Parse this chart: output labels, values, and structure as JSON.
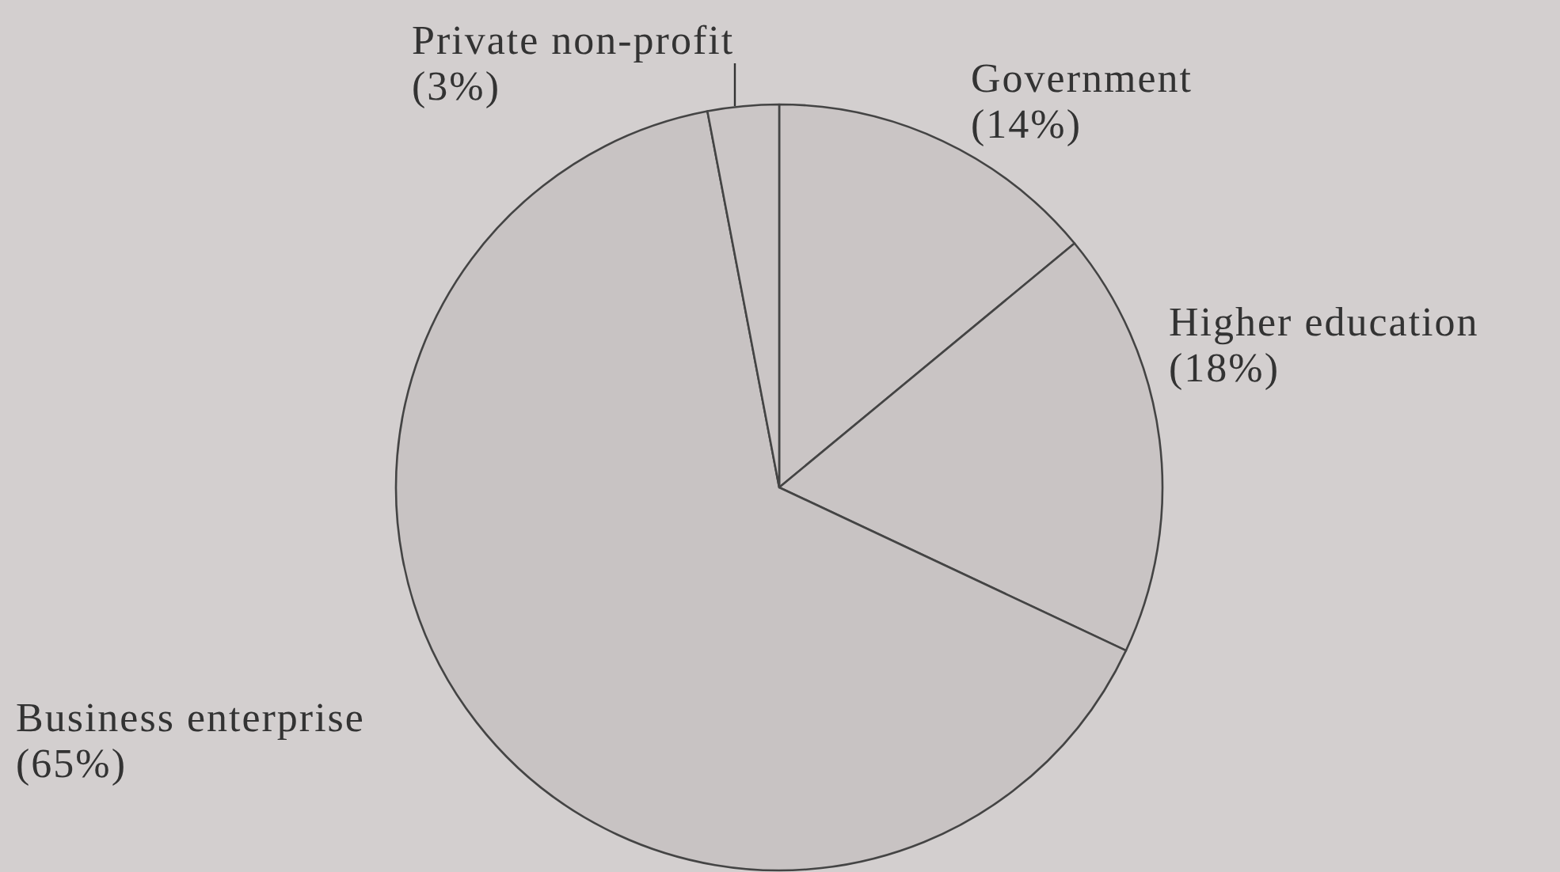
{
  "chart_data": {
    "type": "pie",
    "categories": [
      "Government",
      "Higher education",
      "Business enterprise",
      "Private non-profit"
    ],
    "values": [
      14,
      18,
      65,
      3
    ],
    "colors": [
      "#cac5c5",
      "#c9c4c4",
      "#c8c3c3",
      "#cbc6c6"
    ],
    "value_labels": [
      "(14%)",
      "(18%)",
      "(65%)",
      "(3%)"
    ]
  }
}
